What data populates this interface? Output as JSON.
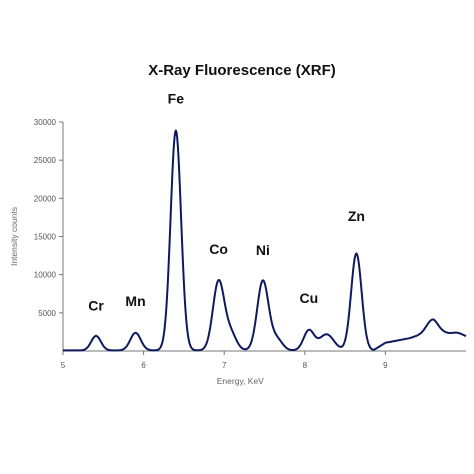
{
  "chart_data": {
    "type": "line",
    "title": "X-Ray Fluorescence (XRF)",
    "xlabel": "Energy, KeV",
    "ylabel": "Intensity counts",
    "xlim": [
      5,
      10
    ],
    "ylim": [
      0,
      30000
    ],
    "xticks": [
      5,
      6,
      7,
      8,
      9
    ],
    "yticks": [
      5000,
      10000,
      15000,
      20000,
      25000,
      30000
    ],
    "grid": false,
    "color": "#0f1a5e",
    "baseline": 80,
    "background": [
      {
        "x": 9.0,
        "y": 1000
      },
      {
        "x": 9.3,
        "y": 1600
      },
      {
        "x": 9.6,
        "y": 2600
      },
      {
        "x": 10.0,
        "y": 1800
      }
    ],
    "peaks": [
      {
        "label": "Cr",
        "x": 5.41,
        "height": 1900,
        "width": 0.06,
        "label_y": 5300
      },
      {
        "label": "Mn",
        "x": 5.9,
        "height": 2300,
        "width": 0.065,
        "label_y": 5900
      },
      {
        "label": "Fe",
        "x": 6.4,
        "height": 28800,
        "width": 0.065,
        "label_y": 32400
      },
      {
        "label": "Co",
        "x": 6.93,
        "height": 9000,
        "width": 0.07,
        "label_y": 12700
      },
      {
        "label": "",
        "x": 7.08,
        "height": 2200,
        "width": 0.07,
        "label_y": null
      },
      {
        "label": "Ni",
        "x": 7.48,
        "height": 9100,
        "width": 0.07,
        "label_y": 12600
      },
      {
        "label": "",
        "x": 7.65,
        "height": 1500,
        "width": 0.07,
        "label_y": null
      },
      {
        "label": "Cu",
        "x": 8.05,
        "height": 2600,
        "width": 0.065,
        "label_y": 6300
      },
      {
        "label": "",
        "x": 8.27,
        "height": 2100,
        "width": 0.09,
        "label_y": null
      },
      {
        "label": "Zn",
        "x": 8.64,
        "height": 12700,
        "width": 0.065,
        "label_y": 17000
      },
      {
        "label": "",
        "x": 9.58,
        "height": 1500,
        "width": 0.07,
        "label_y": null
      },
      {
        "label": "",
        "x": 9.9,
        "height": 300,
        "width": 0.06,
        "label_y": null
      }
    ]
  }
}
